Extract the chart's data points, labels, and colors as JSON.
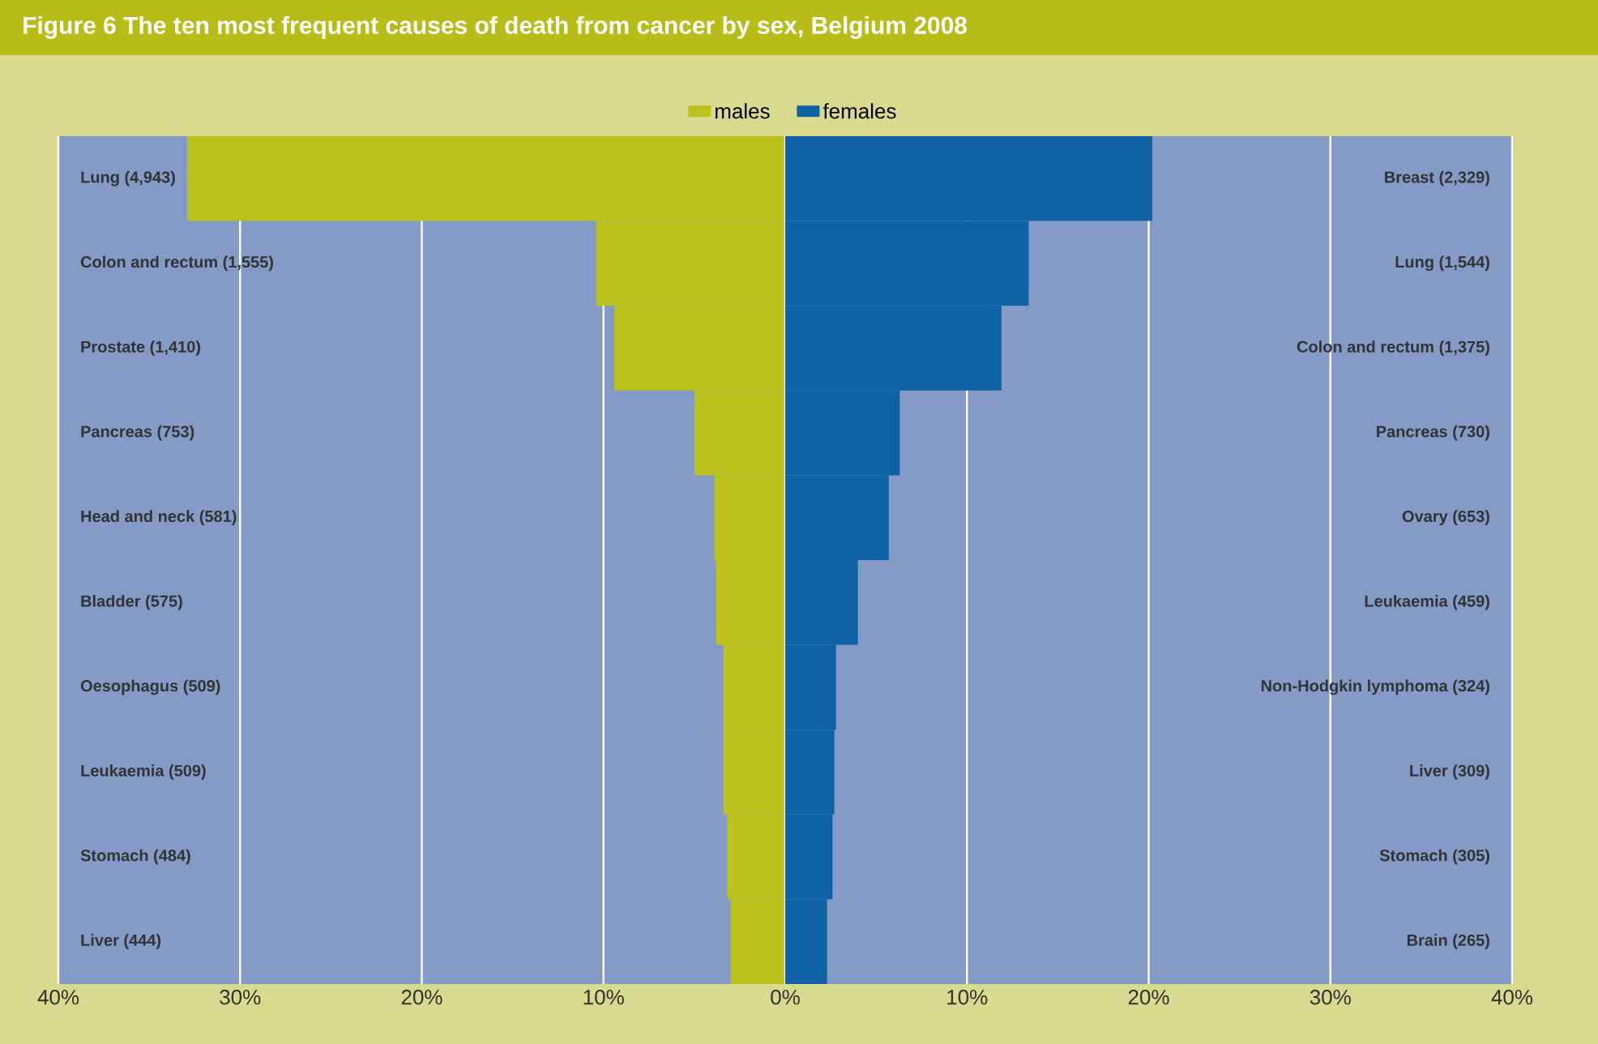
{
  "chart_data": [
    {
      "type": "bar",
      "orientation": "horizontal",
      "title": "Figure 6 The ten most frequent causes of death from cancer by sex, Belgium 2008",
      "categories": [
        "Lung (4,943)",
        "Colon and rectum (1,555)",
        "Prostate (1,410)",
        "Pancreas (753)",
        "Head and neck (581)",
        "Bladder (575)",
        "Oesophagus (509)",
        "Leukaemia (509)",
        "Stomach (484)",
        "Liver (444)"
      ],
      "series": [
        {
          "name": "males",
          "color": "#bcc21c",
          "values": [
            32.9,
            10.4,
            9.4,
            5.0,
            3.9,
            3.8,
            3.4,
            3.4,
            3.2,
            3.0
          ]
        }
      ],
      "xlim": [
        40,
        0
      ],
      "xticks": [
        {
          "value": 40,
          "label": "40%"
        },
        {
          "value": 30,
          "label": "30%"
        },
        {
          "value": 20,
          "label": "20%"
        },
        {
          "value": 10,
          "label": "10%"
        },
        {
          "value": 0,
          "label": "0%"
        }
      ],
      "grid": "x",
      "legend": "top right"
    },
    {
      "type": "bar",
      "orientation": "horizontal",
      "categories": [
        "Breast (2,329)",
        "Lung (1,544)",
        "Colon and rectum (1,375)",
        "Pancreas (730)",
        "Ovary (653)",
        "Leukaemia (459)",
        "Non-Hodgkin lymphoma (324)",
        "Liver (309)",
        "Stomach (305)",
        "Brain (265)"
      ],
      "series": [
        {
          "name": "females",
          "color": "#0f62a4",
          "values": [
            20.2,
            13.4,
            11.9,
            6.3,
            5.7,
            4.0,
            2.8,
            2.7,
            2.6,
            2.3
          ]
        }
      ],
      "xlim": [
        0,
        40
      ],
      "xticks": [
        {
          "value": 0,
          "label": null
        },
        {
          "value": 10,
          "label": "10%"
        },
        {
          "value": 20,
          "label": "20%"
        },
        {
          "value": 30,
          "label": "30%"
        },
        {
          "value": 40,
          "label": "40%"
        }
      ],
      "grid": "x",
      "legend": "top left"
    }
  ]
}
